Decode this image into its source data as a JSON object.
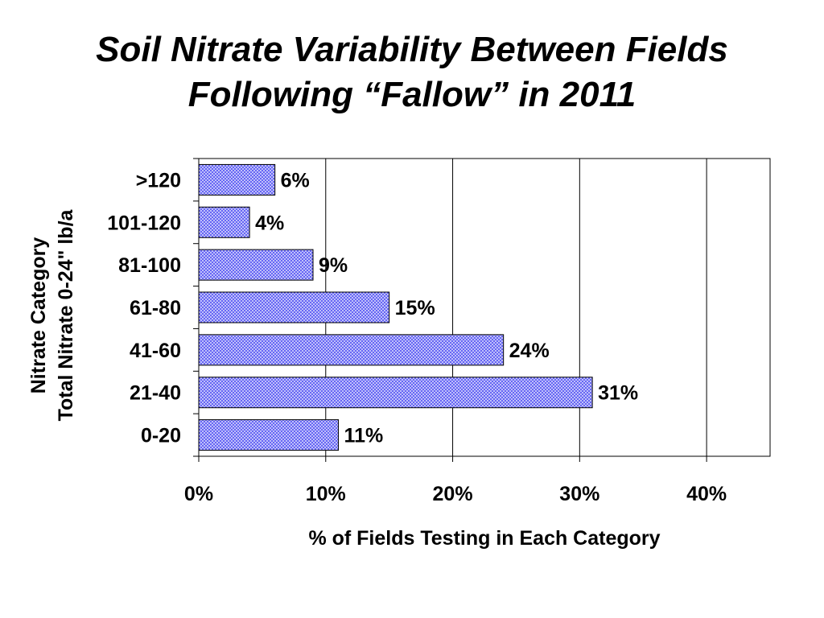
{
  "title_lines": [
    "Soil Nitrate Variability Between Fields",
    "Following “Fallow” in 2011"
  ],
  "colors": {
    "bar_fill": "#4b4bf2",
    "bar_pattern": "#ffffff",
    "bar_stroke": "#000000",
    "grid": "#000000"
  },
  "chart_data": {
    "type": "bar",
    "orientation": "horizontal",
    "categories": [
      "0-20",
      "21-40",
      "41-60",
      "61-80",
      "81-100",
      "101-120",
      ">120"
    ],
    "values": [
      11,
      31,
      24,
      15,
      9,
      4,
      6
    ],
    "data_labels": [
      "11%",
      "31%",
      "24%",
      "15%",
      "9%",
      "4%",
      "6%"
    ],
    "xlim": [
      0,
      45
    ],
    "xticks": [
      0,
      10,
      20,
      30,
      40
    ],
    "xtick_labels": [
      "0%",
      "10%",
      "20%",
      "30%",
      "40%"
    ],
    "xlabel": "% of Fields Testing in Each Category",
    "ylabel_lines": [
      "Nitrate Category",
      "Total Nitrate 0-24\" lb/a"
    ],
    "grid": "vertical",
    "legend": "none"
  }
}
